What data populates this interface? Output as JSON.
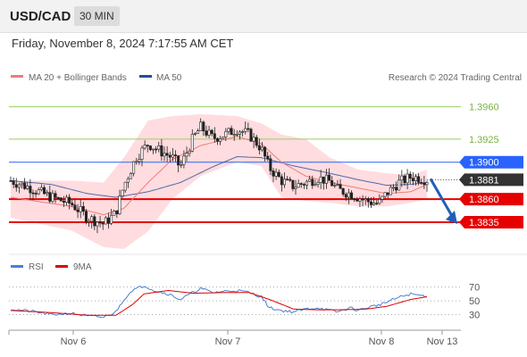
{
  "header": {
    "symbol": "USD/CAD",
    "timeframe": "30 MIN",
    "datetime": "Friday, November 8, 2024 7:17:55 AM CET"
  },
  "colors": {
    "resistance": "#9ccc65",
    "pivot": "#2962ff",
    "support": "#e60000",
    "bollinger_fill": "#ffcdd2",
    "ma20": "#ef7b7b",
    "ma50": "#1f4e9c",
    "rsi": "#4a7fd4",
    "rsi_ma": "#e00000",
    "arrow": "#1f5fb8",
    "last_price_bg": "#333333"
  },
  "chart_data": [
    {
      "type": "candlestick",
      "title": "USD/CAD 30 MIN",
      "legend": [
        "MA 20 + Bollinger Bands",
        "MA 50"
      ],
      "watermark": "Research © 2024 Trading Central",
      "x_ticks": [
        "Nov 6",
        "Nov 7",
        "Nov 8",
        "Nov 13"
      ],
      "ylim": [
        1.3805,
        1.398
      ],
      "levels": [
        {
          "value": 1.396,
          "label": "1.3960",
          "kind": "resistance"
        },
        {
          "value": 1.3925,
          "label": "1.3925",
          "kind": "resistance"
        },
        {
          "value": 1.39,
          "label": "1.3900",
          "kind": "pivot"
        },
        {
          "value": 1.386,
          "label": "1.3860",
          "kind": "support"
        },
        {
          "value": 1.3835,
          "label": "1.3835",
          "kind": "support"
        }
      ],
      "last_price": {
        "value": 1.3881,
        "label": "1.3881"
      },
      "forecast_arrow": {
        "from": 1.3882,
        "to": 1.3835
      },
      "price_path": [
        [
          0,
          1.388
        ],
        [
          5,
          1.3872
        ],
        [
          10,
          1.3862
        ],
        [
          15,
          1.3855
        ],
        [
          19,
          1.384
        ],
        [
          23,
          1.3833
        ],
        [
          26,
          1.3845
        ],
        [
          28,
          1.3875
        ],
        [
          31,
          1.3905
        ],
        [
          34,
          1.392
        ],
        [
          37,
          1.3912
        ],
        [
          40,
          1.3905
        ],
        [
          42,
          1.3895
        ],
        [
          45,
          1.3925
        ],
        [
          47,
          1.3938
        ],
        [
          50,
          1.3926
        ],
        [
          53,
          1.393
        ],
        [
          56,
          1.3936
        ],
        [
          59,
          1.393
        ],
        [
          62,
          1.3915
        ],
        [
          64,
          1.3894
        ],
        [
          67,
          1.388
        ],
        [
          70,
          1.3874
        ],
        [
          73,
          1.3878
        ],
        [
          76,
          1.3883
        ],
        [
          79,
          1.3879
        ],
        [
          81,
          1.387
        ],
        [
          84,
          1.3866
        ],
        [
          86,
          1.3862
        ],
        [
          88,
          1.3858
        ],
        [
          91,
          1.3855
        ],
        [
          93,
          1.3866
        ],
        [
          96,
          1.3878
        ],
        [
          99,
          1.3884
        ],
        [
          101,
          1.3883
        ],
        [
          103,
          1.3881
        ]
      ],
      "ma20_path": [
        [
          0,
          1.3862
        ],
        [
          15,
          1.3852
        ],
        [
          23,
          1.3843
        ],
        [
          28,
          1.385
        ],
        [
          34,
          1.3878
        ],
        [
          40,
          1.3903
        ],
        [
          47,
          1.3918
        ],
        [
          56,
          1.3928
        ],
        [
          62,
          1.392
        ],
        [
          67,
          1.39
        ],
        [
          73,
          1.3885
        ],
        [
          79,
          1.3878
        ],
        [
          86,
          1.3872
        ],
        [
          93,
          1.3866
        ],
        [
          99,
          1.3868
        ],
        [
          103,
          1.3876
        ]
      ],
      "ma50_path": [
        [
          0,
          1.388
        ],
        [
          10,
          1.3876
        ],
        [
          19,
          1.3866
        ],
        [
          26,
          1.3862
        ],
        [
          34,
          1.3868
        ],
        [
          42,
          1.3878
        ],
        [
          50,
          1.3895
        ],
        [
          56,
          1.3906
        ],
        [
          62,
          1.3905
        ],
        [
          70,
          1.3896
        ],
        [
          79,
          1.3888
        ],
        [
          86,
          1.3881
        ],
        [
          93,
          1.3875
        ],
        [
          99,
          1.3876
        ],
        [
          103,
          1.3878
        ]
      ],
      "bollinger": {
        "upper": [
          [
            0,
            1.388
          ],
          [
            15,
            1.388
          ],
          [
            23,
            1.3878
          ],
          [
            28,
            1.3905
          ],
          [
            34,
            1.3945
          ],
          [
            40,
            1.395
          ],
          [
            47,
            1.3952
          ],
          [
            56,
            1.395
          ],
          [
            62,
            1.3942
          ],
          [
            67,
            1.393
          ],
          [
            73,
            1.3925
          ],
          [
            79,
            1.3905
          ],
          [
            86,
            1.3892
          ],
          [
            93,
            1.3888
          ],
          [
            99,
            1.3886
          ],
          [
            103,
            1.3892
          ]
        ],
        "lower": [
          [
            0,
            1.384
          ],
          [
            15,
            1.3826
          ],
          [
            23,
            1.3808
          ],
          [
            28,
            1.3806
          ],
          [
            34,
            1.3825
          ],
          [
            40,
            1.386
          ],
          [
            47,
            1.3885
          ],
          [
            56,
            1.39
          ],
          [
            62,
            1.3896
          ],
          [
            67,
            1.3862
          ],
          [
            73,
            1.3858
          ],
          [
            79,
            1.3856
          ],
          [
            86,
            1.3852
          ],
          [
            93,
            1.3852
          ],
          [
            99,
            1.3856
          ],
          [
            103,
            1.386
          ]
        ]
      }
    },
    {
      "type": "line",
      "title": "RSI",
      "legend": [
        "RSI",
        "9MA"
      ],
      "ylim": [
        10,
        85
      ],
      "y_ticks": [
        70,
        50,
        30
      ],
      "rsi_path": [
        [
          0,
          38
        ],
        [
          5,
          35
        ],
        [
          10,
          30
        ],
        [
          15,
          32
        ],
        [
          19,
          28
        ],
        [
          23,
          26
        ],
        [
          26,
          34
        ],
        [
          28,
          52
        ],
        [
          30,
          65
        ],
        [
          33,
          72
        ],
        [
          36,
          64
        ],
        [
          39,
          60
        ],
        [
          42,
          52
        ],
        [
          45,
          62
        ],
        [
          47,
          68
        ],
        [
          50,
          62
        ],
        [
          53,
          64
        ],
        [
          56,
          65
        ],
        [
          59,
          62
        ],
        [
          62,
          56
        ],
        [
          64,
          40
        ],
        [
          67,
          36
        ],
        [
          70,
          34
        ],
        [
          73,
          38
        ],
        [
          76,
          40
        ],
        [
          79,
          36
        ],
        [
          81,
          34
        ],
        [
          84,
          40
        ],
        [
          86,
          36
        ],
        [
          88,
          40
        ],
        [
          91,
          44
        ],
        [
          93,
          48
        ],
        [
          96,
          55
        ],
        [
          99,
          60
        ],
        [
          101,
          58
        ],
        [
          103,
          57
        ]
      ],
      "rsi_ma_path": [
        [
          0,
          36
        ],
        [
          10,
          33
        ],
        [
          19,
          29
        ],
        [
          26,
          29
        ],
        [
          30,
          44
        ],
        [
          33,
          60
        ],
        [
          39,
          65
        ],
        [
          45,
          61
        ],
        [
          53,
          62
        ],
        [
          59,
          62
        ],
        [
          64,
          52
        ],
        [
          70,
          38
        ],
        [
          76,
          37
        ],
        [
          81,
          37
        ],
        [
          88,
          38
        ],
        [
          93,
          42
        ],
        [
          99,
          52
        ],
        [
          103,
          56
        ]
      ]
    }
  ]
}
